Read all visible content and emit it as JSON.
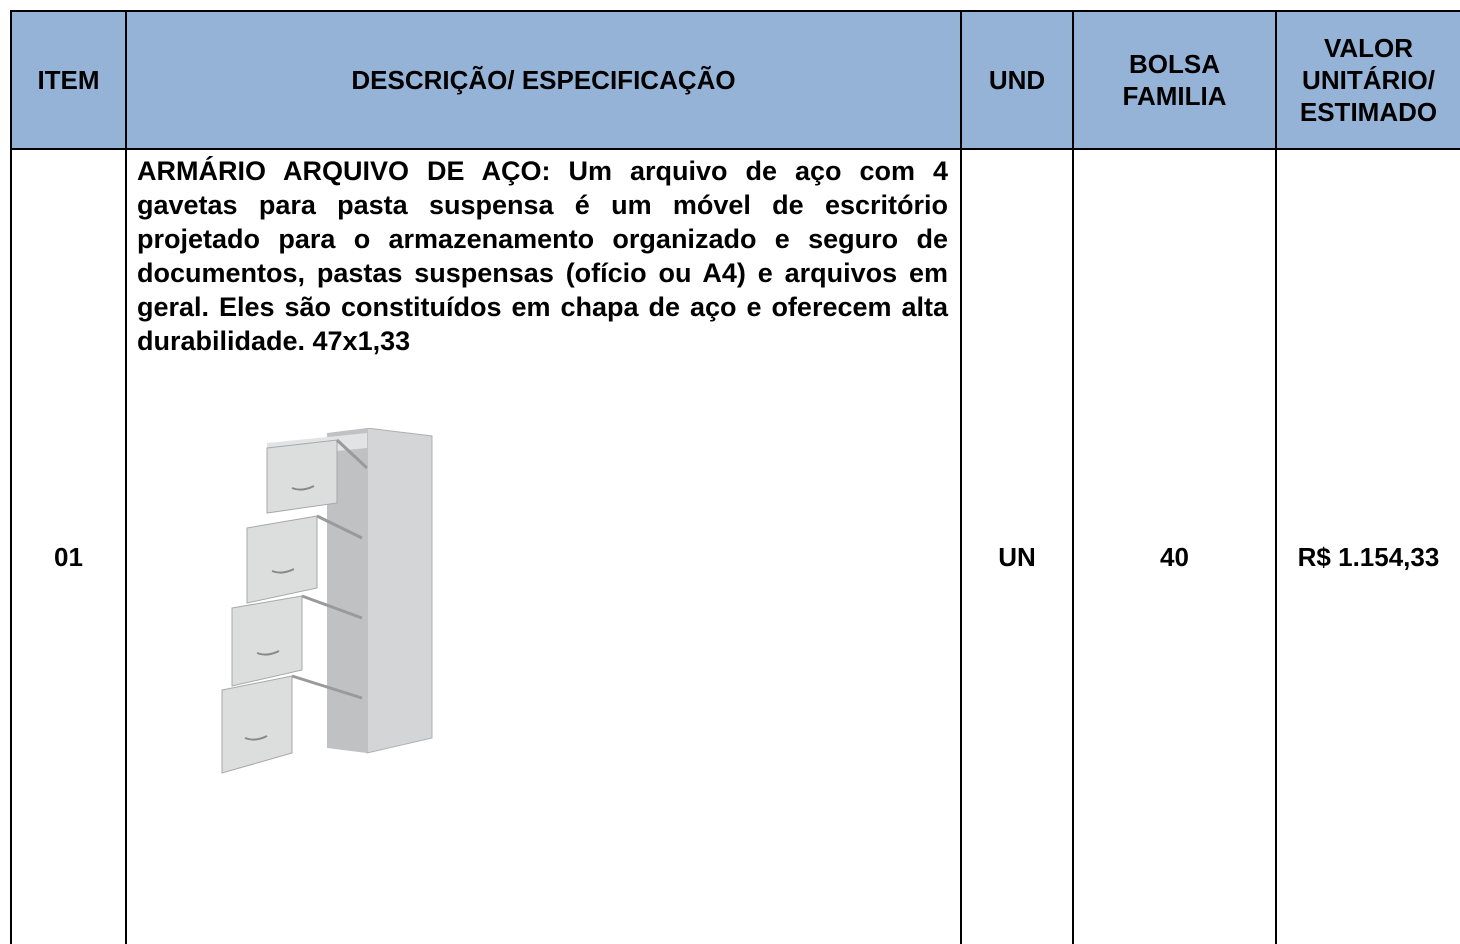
{
  "table": {
    "headers": [
      "ITEM",
      "DESCRIÇÃO/ ESPECIFICAÇÃO",
      "UND",
      "BOLSA FAMILIA",
      "VALOR UNITÁRIO/ ESTIMADO"
    ],
    "rows": [
      [
        "01",
        "ARMÁRIO ARQUIVO DE AÇO: Um arquivo de aço com 4 gavetas para pasta suspensa é um móvel de escritório projetado para o armazenamento organizado e seguro de documentos, pastas suspensas (ofício ou A4) e arquivos em geral. Eles são constituídos em chapa de aço e oferecem alta durabilidade. 47x1,33",
        "UN",
        "40",
        "R$ 1.154,33"
      ]
    ]
  }
}
